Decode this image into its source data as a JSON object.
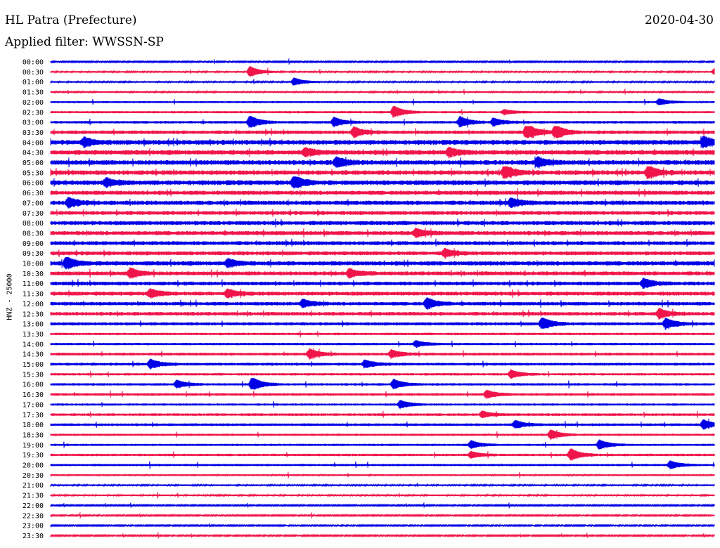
{
  "header": {
    "station": "HL Patra (Prefecture)",
    "date": "2020-04-30",
    "filter_label": "Applied filter: WWSSN-SP"
  },
  "channel_label": "HNZ - 25000",
  "colors": {
    "even_trace": "#0000e6",
    "odd_trace": "#f0144a"
  },
  "chart_data": {
    "type": "line",
    "title": "HL Patra (Prefecture)",
    "subtitle": "Applied filter: WWSSN-SP",
    "ylabel": "HNZ - 25000",
    "row_labels": [
      "00:00",
      "00:30",
      "01:00",
      "01:30",
      "02:00",
      "02:30",
      "03:00",
      "03:30",
      "04:00",
      "04:30",
      "05:00",
      "05:30",
      "06:00",
      "06:30",
      "07:00",
      "07:30",
      "08:00",
      "08:30",
      "09:00",
      "09:30",
      "10:00",
      "10:30",
      "11:00",
      "11:30",
      "12:00",
      "12:30",
      "13:00",
      "13:30",
      "14:00",
      "14:30",
      "15:00",
      "15:30",
      "16:00",
      "16:30",
      "17:00",
      "17:30",
      "18:00",
      "18:30",
      "19:00",
      "19:30",
      "20:00",
      "20:30",
      "21:00",
      "21:30",
      "22:00",
      "22:30",
      "23:00",
      "23:30"
    ],
    "row_minutes": 30,
    "series_colors": [
      "#0000e6",
      "#f0144a"
    ],
    "noise_level": [
      0.15,
      0.2,
      0.2,
      0.2,
      0.3,
      0.35,
      0.45,
      0.7,
      1.0,
      1.0,
      1.0,
      0.95,
      1.0,
      0.85,
      0.9,
      0.8,
      0.85,
      0.85,
      0.8,
      0.8,
      0.9,
      0.8,
      0.75,
      0.8,
      0.7,
      0.7,
      0.6,
      0.4,
      0.4,
      0.5,
      0.5,
      0.4,
      0.4,
      0.45,
      0.35,
      0.45,
      0.45,
      0.35,
      0.35,
      0.4,
      0.35,
      0.25,
      0.2,
      0.2,
      0.15,
      0.15,
      0.15,
      0.15
    ],
    "events": [
      {
        "row": 1,
        "minute": 9.0,
        "amp": 3.5
      },
      {
        "row": 1,
        "minute": 30.0,
        "amp": 2.0
      },
      {
        "row": 2,
        "minute": 11.0,
        "amp": 2.5
      },
      {
        "row": 4,
        "minute": 27.5,
        "amp": 2.0
      },
      {
        "row": 5,
        "minute": 15.5,
        "amp": 4.0
      },
      {
        "row": 5,
        "minute": 20.5,
        "amp": 1.5
      },
      {
        "row": 6,
        "minute": 9.0,
        "amp": 4.0
      },
      {
        "row": 6,
        "minute": 12.8,
        "amp": 3.0
      },
      {
        "row": 6,
        "minute": 18.5,
        "amp": 3.5
      },
      {
        "row": 6,
        "minute": 20.0,
        "amp": 2.5
      },
      {
        "row": 7,
        "minute": 13.7,
        "amp": 3.0
      },
      {
        "row": 7,
        "minute": 21.5,
        "amp": 5.5
      },
      {
        "row": 7,
        "minute": 22.8,
        "amp": 4.5
      },
      {
        "row": 8,
        "minute": 1.5,
        "amp": 2.5
      },
      {
        "row": 8,
        "minute": 29.5,
        "amp": 3.5
      },
      {
        "row": 9,
        "minute": 11.5,
        "amp": 2.5
      },
      {
        "row": 9,
        "minute": 18.0,
        "amp": 2.5
      },
      {
        "row": 10,
        "minute": 12.9,
        "amp": 3.0
      },
      {
        "row": 10,
        "minute": 22.0,
        "amp": 3.0
      },
      {
        "row": 11,
        "minute": 20.5,
        "amp": 4.5
      },
      {
        "row": 11,
        "minute": 27.0,
        "amp": 4.0
      },
      {
        "row": 12,
        "minute": 11.0,
        "amp": 4.0
      },
      {
        "row": 12,
        "minute": 2.5,
        "amp": 2.5
      },
      {
        "row": 14,
        "minute": 0.8,
        "amp": 3.0
      },
      {
        "row": 14,
        "minute": 20.8,
        "amp": 2.5
      },
      {
        "row": 17,
        "minute": 16.5,
        "amp": 2.5
      },
      {
        "row": 19,
        "minute": 17.8,
        "amp": 2.5
      },
      {
        "row": 20,
        "minute": 0.7,
        "amp": 4.0
      },
      {
        "row": 20,
        "minute": 8.0,
        "amp": 2.5
      },
      {
        "row": 21,
        "minute": 3.6,
        "amp": 3.0
      },
      {
        "row": 21,
        "minute": 13.5,
        "amp": 2.5
      },
      {
        "row": 22,
        "minute": 26.8,
        "amp": 3.0
      },
      {
        "row": 23,
        "minute": 4.5,
        "amp": 2.5
      },
      {
        "row": 23,
        "minute": 8.0,
        "amp": 2.5
      },
      {
        "row": 24,
        "minute": 11.4,
        "amp": 2.5
      },
      {
        "row": 24,
        "minute": 17.0,
        "amp": 3.5
      },
      {
        "row": 25,
        "minute": 27.5,
        "amp": 3.0
      },
      {
        "row": 26,
        "minute": 22.2,
        "amp": 4.0
      },
      {
        "row": 26,
        "minute": 27.8,
        "amp": 3.5
      },
      {
        "row": 28,
        "minute": 16.5,
        "amp": 2.0
      },
      {
        "row": 29,
        "minute": 11.7,
        "amp": 3.0
      },
      {
        "row": 29,
        "minute": 15.4,
        "amp": 2.5
      },
      {
        "row": 30,
        "minute": 4.5,
        "amp": 3.0
      },
      {
        "row": 30,
        "minute": 14.2,
        "amp": 2.5
      },
      {
        "row": 31,
        "minute": 20.8,
        "amp": 2.5
      },
      {
        "row": 32,
        "minute": 5.7,
        "amp": 2.5
      },
      {
        "row": 32,
        "minute": 9.1,
        "amp": 4.5
      },
      {
        "row": 32,
        "minute": 15.5,
        "amp": 3.0
      },
      {
        "row": 33,
        "minute": 19.7,
        "amp": 2.5
      },
      {
        "row": 34,
        "minute": 15.8,
        "amp": 2.5
      },
      {
        "row": 35,
        "minute": 19.5,
        "amp": 2.0
      },
      {
        "row": 36,
        "minute": 21.0,
        "amp": 2.5
      },
      {
        "row": 36,
        "minute": 29.5,
        "amp": 3.0
      },
      {
        "row": 37,
        "minute": 22.6,
        "amp": 3.0
      },
      {
        "row": 38,
        "minute": 19.0,
        "amp": 2.5
      },
      {
        "row": 38,
        "minute": 24.8,
        "amp": 3.0
      },
      {
        "row": 39,
        "minute": 23.5,
        "amp": 4.0
      },
      {
        "row": 39,
        "minute": 19.0,
        "amp": 2.0
      },
      {
        "row": 40,
        "minute": 28.0,
        "amp": 2.5
      }
    ]
  }
}
